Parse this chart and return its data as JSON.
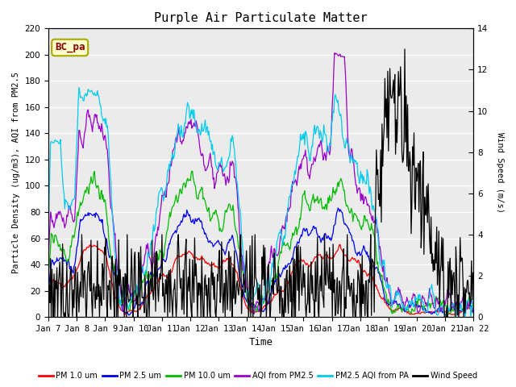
{
  "title": "Purple Air Particulate Matter",
  "xlabel": "Time",
  "ylabel_left": "Particle Density (ug/m3), AQI from PM2.5",
  "ylabel_right": "Wind Speed (m/s)",
  "annotation_text": "BC_pa",
  "annotation_facecolor": "#ffffcc",
  "annotation_edgecolor": "#aaa800",
  "annotation_textcolor": "#880000",
  "ylim_left": [
    0,
    220
  ],
  "ylim_right": [
    0,
    14
  ],
  "yticks_left": [
    0,
    20,
    40,
    60,
    80,
    100,
    120,
    140,
    160,
    180,
    200,
    220
  ],
  "yticks_right": [
    0,
    2,
    4,
    6,
    8,
    10,
    12,
    14
  ],
  "xtick_labels": [
    "Jan 7",
    "Jan 8",
    "Jan 9",
    "Jan 10",
    "Jan 11",
    "Jan 12",
    "Jan 13",
    "Jan 14",
    "Jan 15",
    "Jan 16",
    "Jan 17",
    "Jan 18",
    "Jan 19",
    "Jan 20",
    "Jan 21",
    "Jan 22"
  ],
  "legend_labels": [
    "PM 1.0 um",
    "PM 2.5 um",
    "PM 10.0 um",
    "AQI from PM2.5",
    "PM2.5 AQI from PA",
    "Wind Speed"
  ],
  "legend_colors": [
    "#ff0000",
    "#0000ee",
    "#00bb00",
    "#9900cc",
    "#00ccee",
    "#000000"
  ],
  "line_width": 0.9,
  "plot_bg_color": "#ebebeb",
  "grid_color": "#ffffff",
  "n_points": 600,
  "seed": 77
}
